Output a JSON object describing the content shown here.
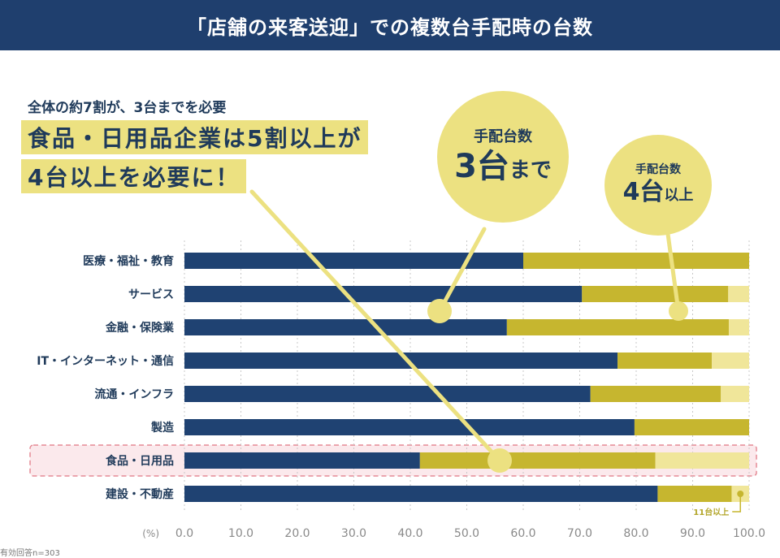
{
  "header": {
    "title": "「店舗の来客送迎」での複数台手配時の台数"
  },
  "callout": {
    "caption": "全体の約7割が、3台までを必要",
    "highlight_line1": "食品・日用品企業は5割以上が",
    "highlight_line2": "4台以上を必要に！"
  },
  "bubbles": {
    "b3": {
      "top": "手配台数",
      "big": "3台",
      "suffix": "まで"
    },
    "b4": {
      "top": "手配台数",
      "big": "4台",
      "suffix": "以上"
    }
  },
  "footnote": "有効回答n=303",
  "colors": {
    "header": "#1f3f6e",
    "upTo3": "#1f4272",
    "four_to_ten": "#c6b62f",
    "eleven_plus": "#f0e69a",
    "bubble": "#ece181",
    "highlight_box": "#e58a95"
  },
  "chart_data": {
    "type": "bar",
    "orientation": "horizontal",
    "stacked": true,
    "categories": [
      "医療・福祉・教育",
      "サービス",
      "金融・保険業",
      "IT・インターネット・通信",
      "流通・インフラ",
      "製造",
      "食品・日用品",
      "建設・不動産"
    ],
    "series": [
      {
        "values": [
          60.0,
          70.4,
          57.1,
          76.7,
          71.9,
          79.7,
          41.7,
          83.8
        ]
      },
      {
        "values": [
          40.0,
          25.9,
          39.3,
          16.7,
          23.1,
          20.3,
          41.7,
          13.1
        ]
      },
      {
        "values": [
          0.0,
          3.7,
          3.6,
          6.6,
          5.0,
          0.0,
          16.6,
          3.1
        ]
      }
    ],
    "xlim": [
      0,
      100
    ],
    "xticks": [
      "0.0",
      "10.0",
      "20.0",
      "30.0",
      "40.0",
      "50.0",
      "60.0",
      "70.0",
      "80.0",
      "90.0",
      "100.0"
    ],
    "xunit": "(%)",
    "annotation": "11台以上",
    "grid": true,
    "highlight_category": "食品・日用品"
  }
}
